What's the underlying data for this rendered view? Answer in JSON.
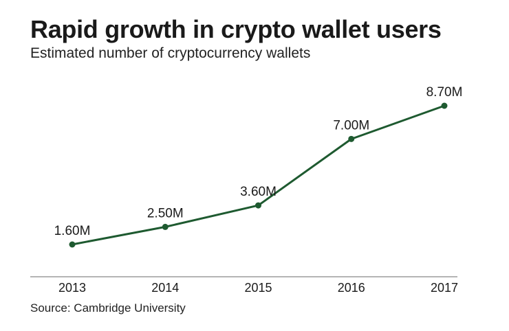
{
  "title": "Rapid growth in crypto wallet users",
  "subtitle": "Estimated number of cryptocurrency wallets",
  "source": "Source: Cambridge University",
  "colors": {
    "line": "#1e5a30",
    "axis": "#888888",
    "text": "#1a1a1a"
  },
  "chart_data": {
    "type": "line",
    "title": "Rapid growth in crypto wallet users",
    "subtitle": "Estimated number of cryptocurrency wallets",
    "x": [
      "2013",
      "2014",
      "2015",
      "2016",
      "2017"
    ],
    "series": [
      {
        "values": [
          1.6,
          2.5,
          3.6,
          7.0,
          8.7
        ],
        "labels": [
          "1.60M",
          "2.50M",
          "3.60M",
          "7.00M",
          "8.70M"
        ]
      }
    ],
    "ylim": [
      0,
      10
    ],
    "grid": false,
    "legend": "none"
  }
}
